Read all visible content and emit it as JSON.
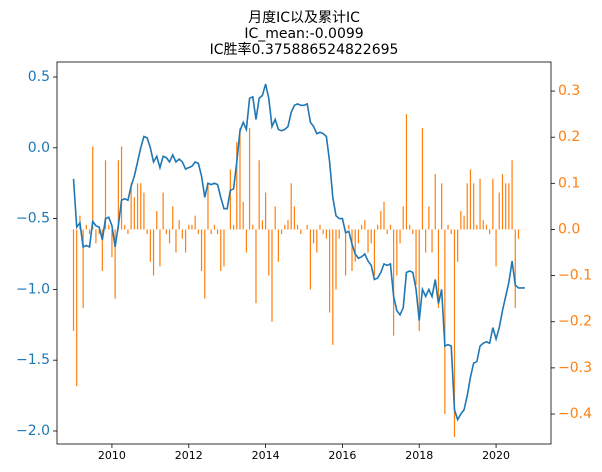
{
  "chart_data": {
    "type": "combo",
    "title_lines": [
      "月度IC以及累计IC",
      "IC_mean:-0.0099",
      "IC胜率0.375886524822695"
    ],
    "x": [
      2009,
      2009.083,
      2009.167,
      2009.25,
      2009.333,
      2009.417,
      2009.5,
      2009.583,
      2009.667,
      2009.75,
      2009.833,
      2009.917,
      2010,
      2010.083,
      2010.167,
      2010.25,
      2010.333,
      2010.417,
      2010.5,
      2010.583,
      2010.667,
      2010.75,
      2010.833,
      2010.917,
      2011,
      2011.083,
      2011.167,
      2011.25,
      2011.333,
      2011.417,
      2011.5,
      2011.583,
      2011.667,
      2011.75,
      2011.833,
      2011.917,
      2012,
      2012.083,
      2012.167,
      2012.25,
      2012.333,
      2012.417,
      2012.5,
      2012.583,
      2012.667,
      2012.75,
      2012.833,
      2012.917,
      2013,
      2013.083,
      2013.167,
      2013.25,
      2013.333,
      2013.417,
      2013.5,
      2013.583,
      2013.667,
      2013.75,
      2013.833,
      2013.917,
      2014,
      2014.083,
      2014.167,
      2014.25,
      2014.333,
      2014.417,
      2014.5,
      2014.583,
      2014.667,
      2014.75,
      2014.833,
      2014.917,
      2015,
      2015.083,
      2015.167,
      2015.25,
      2015.333,
      2015.417,
      2015.5,
      2015.583,
      2015.667,
      2015.75,
      2015.833,
      2015.917,
      2016,
      2016.083,
      2016.167,
      2016.25,
      2016.333,
      2016.417,
      2016.5,
      2016.583,
      2016.667,
      2016.75,
      2016.833,
      2016.917,
      2017,
      2017.083,
      2017.167,
      2017.25,
      2017.333,
      2017.417,
      2017.5,
      2017.583,
      2017.667,
      2017.75,
      2017.833,
      2017.917,
      2018,
      2018.083,
      2018.167,
      2018.25,
      2018.333,
      2018.417,
      2018.5,
      2018.583,
      2018.667,
      2018.75,
      2018.833,
      2018.917,
      2019,
      2019.083,
      2019.167,
      2019.25,
      2019.333,
      2019.417,
      2019.5,
      2019.583,
      2019.667,
      2019.75,
      2019.833,
      2019.917,
      2020,
      2020.083,
      2020.167,
      2020.25,
      2020.333,
      2020.417,
      2020.5,
      2020.583,
      2020.667,
      2020.75
    ],
    "series": [
      {
        "type": "bar",
        "axis": "y2",
        "color": "#ff7f0e",
        "values": [
          -0.22,
          -0.34,
          0.03,
          -0.17,
          0.01,
          -0.01,
          0.18,
          -0.03,
          -0.01,
          -0.09,
          0.15,
          0.01,
          -0.06,
          -0.15,
          0.15,
          0.18,
          0.01,
          -0.01,
          0.1,
          0.07,
          0.1,
          0.1,
          0.08,
          -0.01,
          -0.07,
          -0.1,
          0.04,
          -0.08,
          0.08,
          -0.01,
          -0.03,
          0.05,
          -0.05,
          0.02,
          -0.02,
          -0.05,
          0.01,
          0.01,
          0.03,
          -0.01,
          -0.09,
          -0.15,
          0.1,
          -0.01,
          0.01,
          -0.01,
          -0.09,
          -0.08,
          0.0,
          0.13,
          0.01,
          0.19,
          0.22,
          0.06,
          -0.05,
          0.22,
          0.01,
          -0.16,
          0.15,
          0.02,
          0.08,
          -0.1,
          -0.2,
          0.05,
          -0.07,
          -0.01,
          0.01,
          0.02,
          0.1,
          0.05,
          0.01,
          -0.01,
          0.0,
          0.01,
          -0.13,
          -0.03,
          -0.05,
          0.01,
          -0.01,
          -0.02,
          -0.18,
          -0.25,
          -0.13,
          -0.02,
          0.0,
          -0.1,
          0.01,
          -0.09,
          -0.07,
          -0.03,
          0.01,
          0.02,
          -0.05,
          -0.03,
          -0.1,
          0.01,
          0.04,
          0.06,
          -0.01,
          0.01,
          -0.23,
          -0.1,
          -0.03,
          0.05,
          0.25,
          0.01,
          -0.01,
          -0.12,
          -0.22,
          0.22,
          -0.05,
          0.05,
          -0.05,
          0.12,
          -0.17,
          0.1,
          -0.4,
          0.01,
          -0.01,
          -0.45,
          -0.07,
          0.04,
          0.03,
          0.1,
          0.13,
          0.1,
          0.01,
          0.11,
          0.02,
          0.01,
          -0.01,
          0.11,
          -0.08,
          0.08,
          0.12,
          0.1,
          0.1,
          0.15,
          -0.17,
          -0.02,
          0.0,
          0.0
        ]
      },
      {
        "type": "line",
        "color": "#1f77b4",
        "values": [
          -0.22,
          -0.56,
          -0.53,
          -0.7,
          -0.69,
          -0.7,
          -0.52,
          -0.55,
          -0.56,
          -0.65,
          -0.5,
          -0.49,
          -0.55,
          -0.7,
          -0.55,
          -0.37,
          -0.36,
          -0.37,
          -0.27,
          -0.2,
          -0.1,
          0.0,
          0.08,
          0.07,
          0.0,
          -0.1,
          -0.06,
          -0.14,
          -0.06,
          -0.07,
          -0.1,
          -0.05,
          -0.1,
          -0.08,
          -0.1,
          -0.15,
          -0.14,
          -0.13,
          -0.1,
          -0.11,
          -0.2,
          -0.35,
          -0.25,
          -0.26,
          -0.25,
          -0.26,
          -0.35,
          -0.43,
          -0.43,
          -0.3,
          -0.29,
          -0.1,
          0.12,
          0.18,
          0.13,
          0.35,
          0.36,
          0.2,
          0.35,
          0.37,
          0.45,
          0.35,
          0.15,
          0.2,
          0.13,
          0.12,
          0.13,
          0.15,
          0.25,
          0.3,
          0.31,
          0.3,
          0.3,
          0.31,
          0.18,
          0.15,
          0.1,
          0.11,
          0.1,
          0.08,
          -0.1,
          -0.35,
          -0.48,
          -0.5,
          -0.5,
          -0.6,
          -0.59,
          -0.68,
          -0.75,
          -0.78,
          -0.77,
          -0.75,
          -0.8,
          -0.83,
          -0.93,
          -0.92,
          -0.88,
          -0.82,
          -0.83,
          -0.82,
          -1.05,
          -1.15,
          -1.18,
          -1.13,
          -0.88,
          -0.87,
          -0.88,
          -1.0,
          -1.22,
          -1.0,
          -1.05,
          -1.0,
          -1.05,
          -0.93,
          -1.1,
          -1.0,
          -1.4,
          -1.39,
          -1.4,
          -1.85,
          -1.92,
          -1.88,
          -1.85,
          -1.75,
          -1.62,
          -1.52,
          -1.51,
          -1.4,
          -1.38,
          -1.37,
          -1.38,
          -1.27,
          -1.35,
          -1.27,
          -1.15,
          -1.05,
          -0.95,
          -0.8,
          -0.97,
          -0.99,
          -0.99,
          -0.99
        ]
      }
    ],
    "xlim": [
      2008.57,
      2021.43
    ],
    "xticks": [
      2010,
      2012,
      2014,
      2016,
      2018,
      2020
    ],
    "ylim": [
      -2.092,
      0.606
    ],
    "yticks": [
      0.5,
      {
        "value": 0,
        "label": "0.0"
      },
      {
        "value": -0.5,
        "label": "−0.5"
      },
      {
        "value": -1,
        "label": "−1.0"
      },
      {
        "value": -1.5,
        "label": "−1.5"
      },
      {
        "value": -2,
        "label": "−2.0"
      }
    ],
    "y2lim": [
      -0.465,
      0.363
    ],
    "y2ticks": [
      0.3,
      0.2,
      0.1,
      {
        "value": 0,
        "label": "0.0"
      },
      {
        "value": -0.1,
        "label": "−0.1"
      },
      {
        "value": -0.2,
        "label": "−0.2"
      },
      {
        "value": -0.3,
        "label": "−0.3"
      },
      {
        "value": -0.4,
        "label": "−0.4"
      }
    ]
  }
}
